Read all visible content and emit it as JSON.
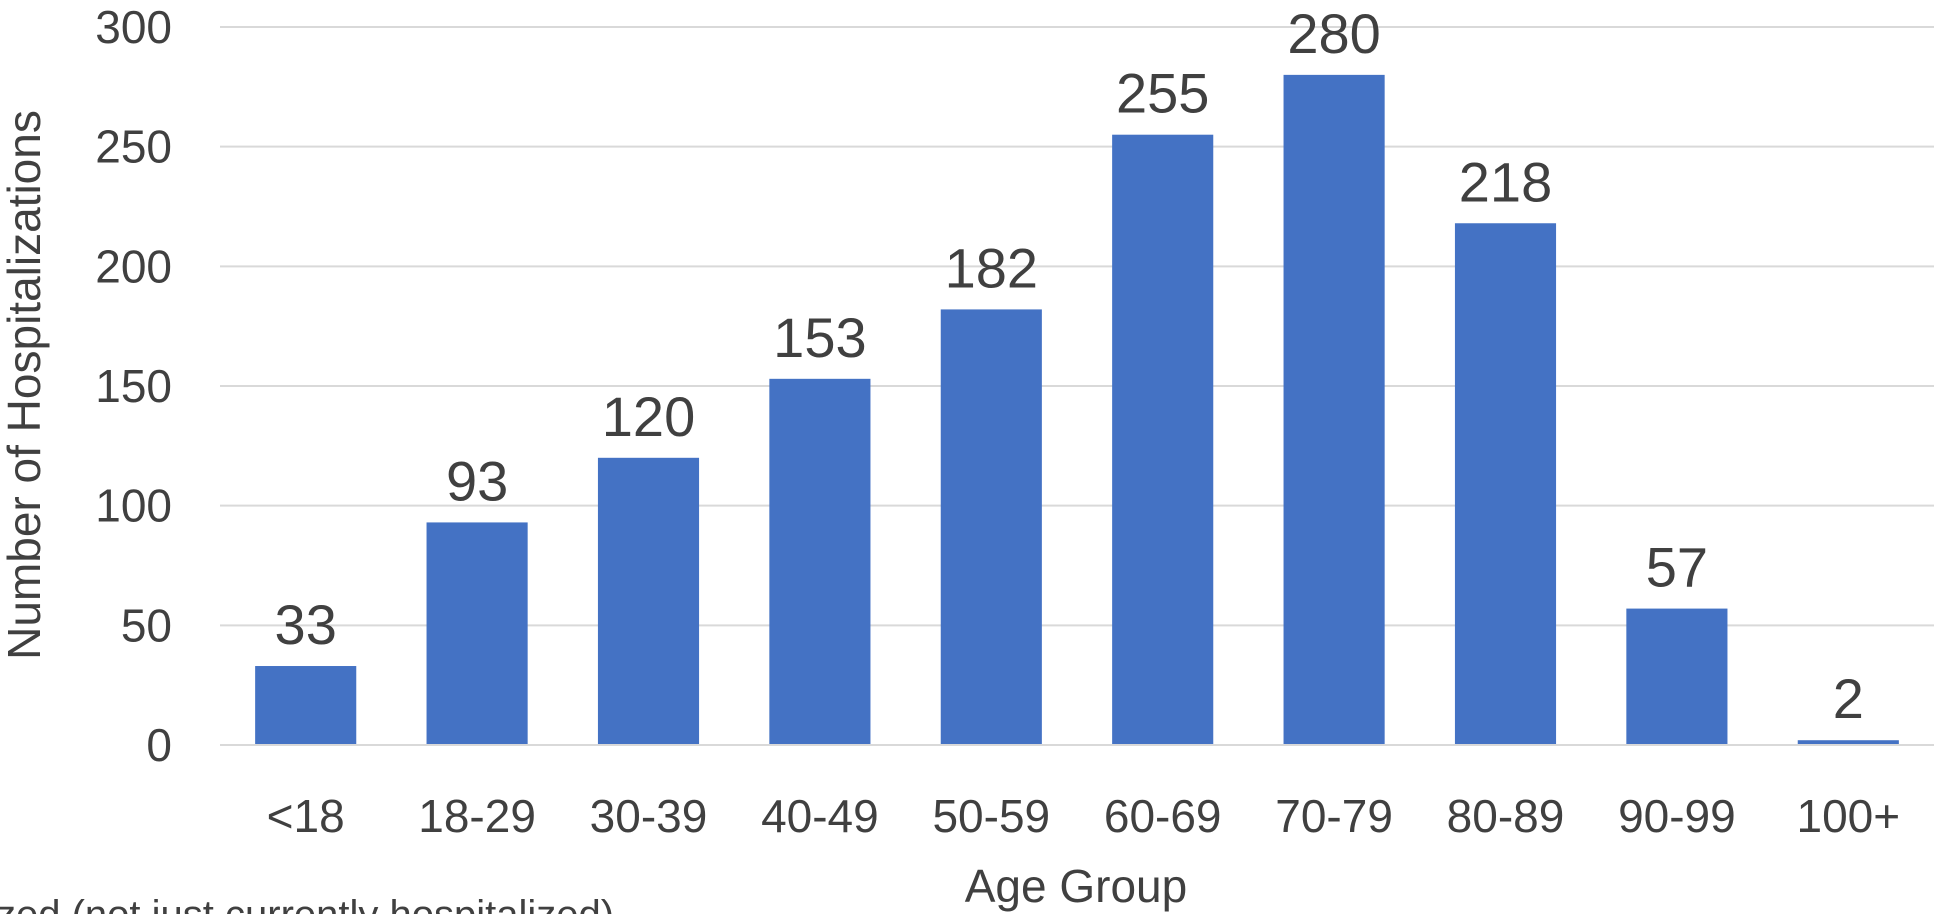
{
  "chart_data": {
    "type": "bar",
    "title": "",
    "xlabel": "Age Group",
    "ylabel": "Number of Hospitalizations",
    "categories": [
      "<18",
      "18-29",
      "30-39",
      "40-49",
      "50-59",
      "60-69",
      "70-79",
      "80-89",
      "90-99",
      "100+"
    ],
    "values": [
      33,
      93,
      120,
      153,
      182,
      255,
      280,
      218,
      57,
      2
    ],
    "yticks": [
      0,
      50,
      100,
      150,
      200,
      250,
      300
    ],
    "ylim": [
      0,
      300
    ],
    "grid": true,
    "legend": "none",
    "bar_color": "#4472C4",
    "gridline_color": "#D9D9D9",
    "text_color": "#404040",
    "data_labels": true
  },
  "footnote": "zed (not just currently hospitalized)"
}
